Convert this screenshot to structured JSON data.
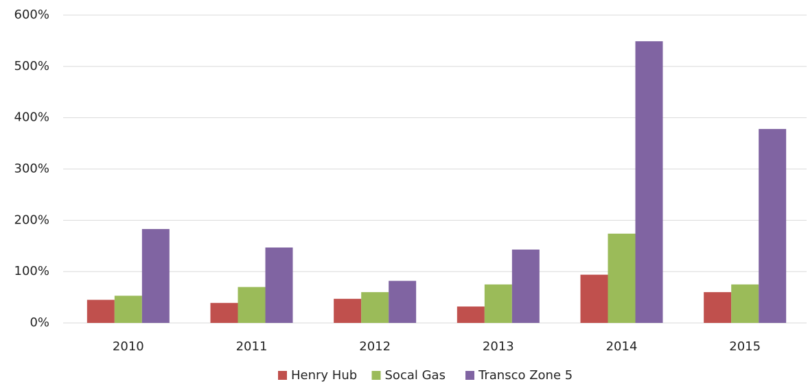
{
  "chart_data": {
    "type": "bar",
    "categories": [
      "2010",
      "2011",
      "2012",
      "2013",
      "2014",
      "2015"
    ],
    "series": [
      {
        "name": "Henry Hub",
        "color": "#c0504d",
        "values": [
          45,
          39,
          47,
          32,
          94,
          60
        ]
      },
      {
        "name": "Socal Gas",
        "color": "#9bbb59",
        "values": [
          53,
          70,
          60,
          75,
          174,
          75
        ]
      },
      {
        "name": "Transco Zone 5",
        "color": "#8064a2",
        "values": [
          183,
          147,
          82,
          143,
          549,
          378
        ]
      }
    ],
    "ylim": [
      0,
      600
    ],
    "yticks": [
      {
        "value": 0,
        "label": "0%"
      },
      {
        "value": 100,
        "label": "100%"
      },
      {
        "value": 200,
        "label": "200%"
      },
      {
        "value": 300,
        "label": "300%"
      },
      {
        "value": 400,
        "label": "400%"
      },
      {
        "value": 500,
        "label": "500%"
      },
      {
        "value": 600,
        "label": "600%"
      }
    ],
    "grid": true,
    "legend": "bottom"
  }
}
